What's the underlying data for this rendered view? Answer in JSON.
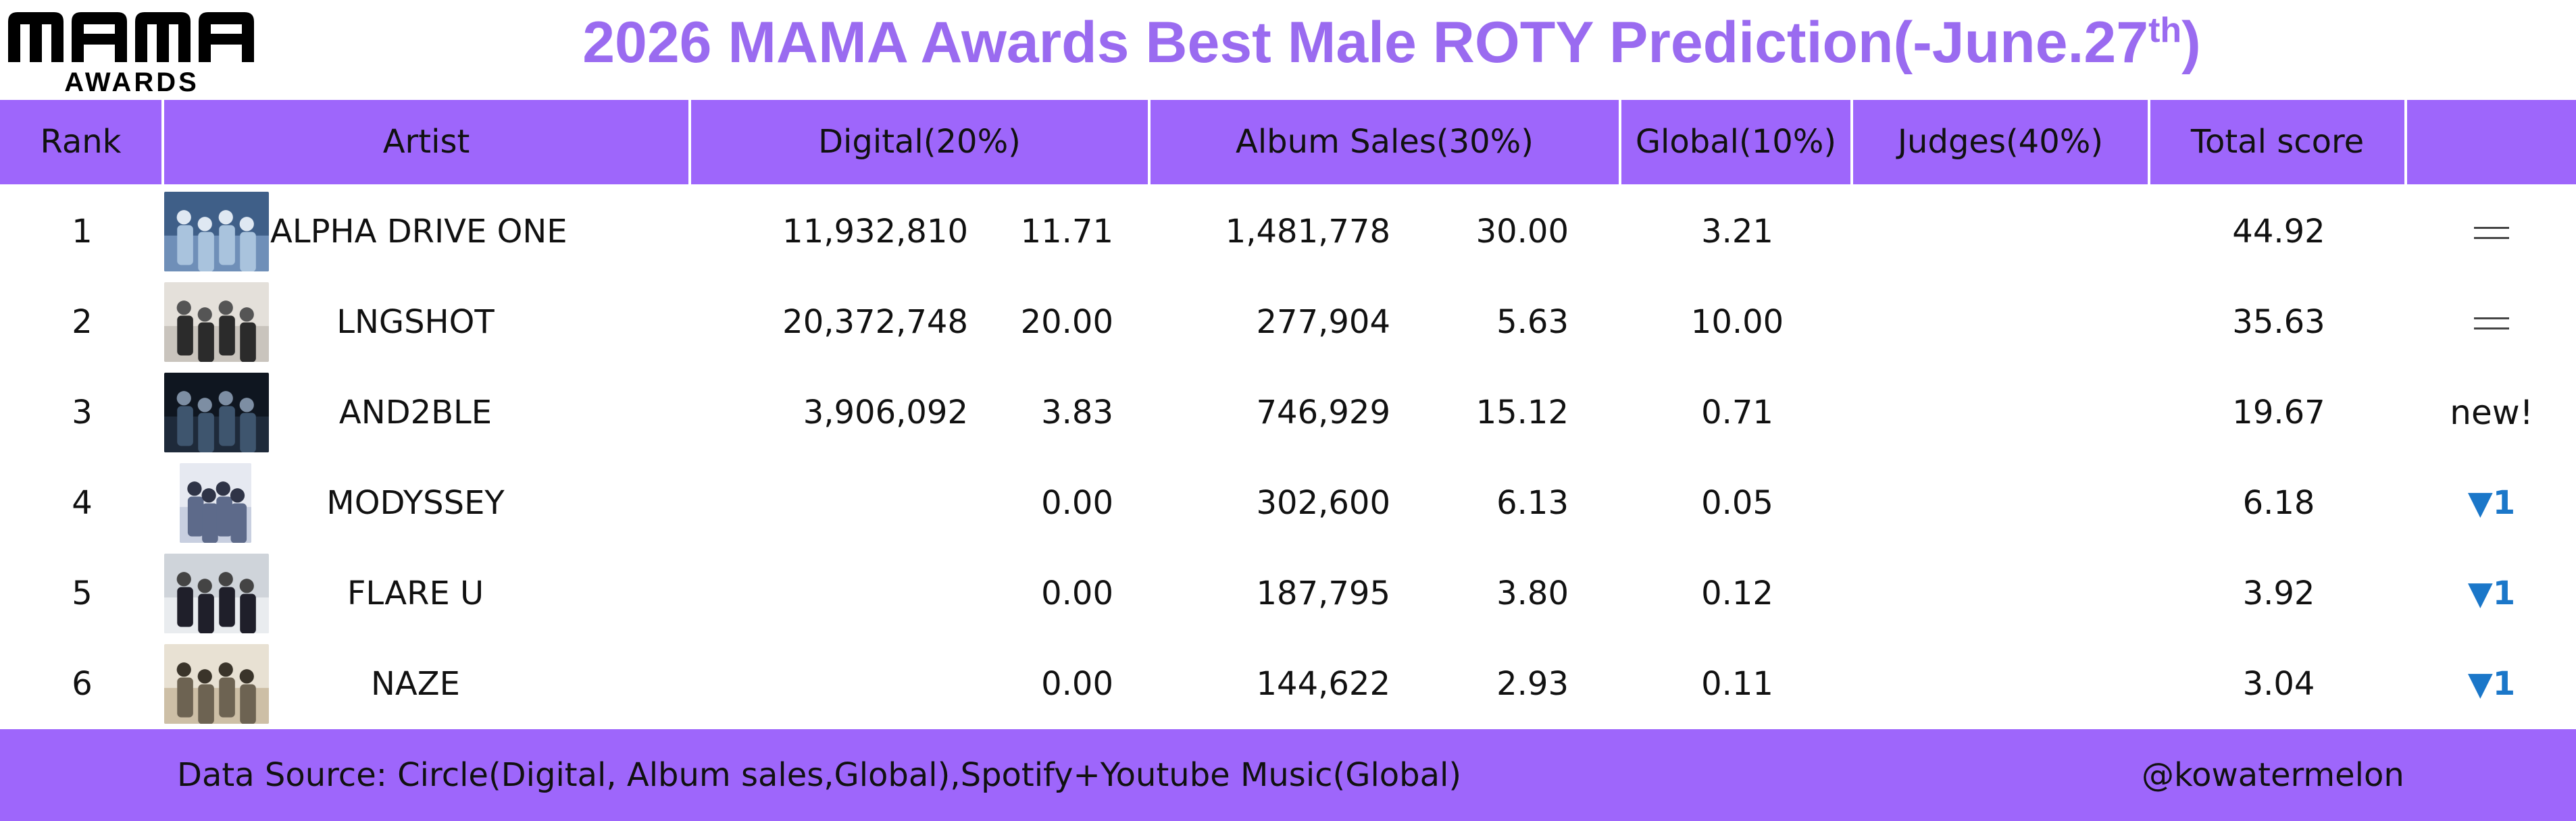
{
  "logo": {
    "main": "MAMA",
    "sub": "AWARDS"
  },
  "title": {
    "text": "2026 MAMA Awards Best Male ROTY Prediction(-June.27",
    "superscript": "th",
    "suffix": ")"
  },
  "columns": {
    "rank": "Rank",
    "artist": "Artist",
    "digital": "Digital(20%)",
    "album": "Album Sales(30%)",
    "global": "Global(10%)",
    "judges": "Judges(40%)",
    "total": "Total score",
    "change": ""
  },
  "rows": [
    {
      "rank": "1",
      "artist": "ALPHA DRIVE ONE",
      "digital_raw": "11,932,810",
      "digital_score": "11.71",
      "album_raw": "1,481,778",
      "album_score": "30.00",
      "global": "3.21",
      "judges": "",
      "total": "44.92",
      "change": "=",
      "change_type": "same"
    },
    {
      "rank": "2",
      "artist": "LNGSHOT",
      "digital_raw": "20,372,748",
      "digital_score": "20.00",
      "album_raw": "277,904",
      "album_score": "5.63",
      "global": "10.00",
      "judges": "",
      "total": "35.63",
      "change": "=",
      "change_type": "same"
    },
    {
      "rank": "3",
      "artist": "AND2BLE",
      "digital_raw": "3,906,092",
      "digital_score": "3.83",
      "album_raw": "746,929",
      "album_score": "15.12",
      "global": "0.71",
      "judges": "",
      "total": "19.67",
      "change": "new!",
      "change_type": "new"
    },
    {
      "rank": "4",
      "artist": "MODYSSEY",
      "digital_raw": "",
      "digital_score": "0.00",
      "album_raw": "302,600",
      "album_score": "6.13",
      "global": "0.05",
      "judges": "",
      "total": "6.18",
      "change": "▼1",
      "change_type": "down"
    },
    {
      "rank": "5",
      "artist": "FLARE U",
      "digital_raw": "",
      "digital_score": "0.00",
      "album_raw": "187,795",
      "album_score": "3.80",
      "global": "0.12",
      "judges": "",
      "total": "3.92",
      "change": "▼1",
      "change_type": "down"
    },
    {
      "rank": "6",
      "artist": "NAZE",
      "digital_raw": "",
      "digital_score": "0.00",
      "album_raw": "144,622",
      "album_score": "2.93",
      "global": "0.11",
      "judges": "",
      "total": "3.04",
      "change": "▼1",
      "change_type": "down"
    }
  ],
  "footer": {
    "source": "Data Source: Circle(Digital, Album sales,Global),Spotify+Youtube Music(Global)",
    "handle": "@kowatermelon"
  },
  "colors": {
    "accent": "#9e66fb",
    "title": "#9a6bf0",
    "down_arrow": "#1b77c9"
  }
}
